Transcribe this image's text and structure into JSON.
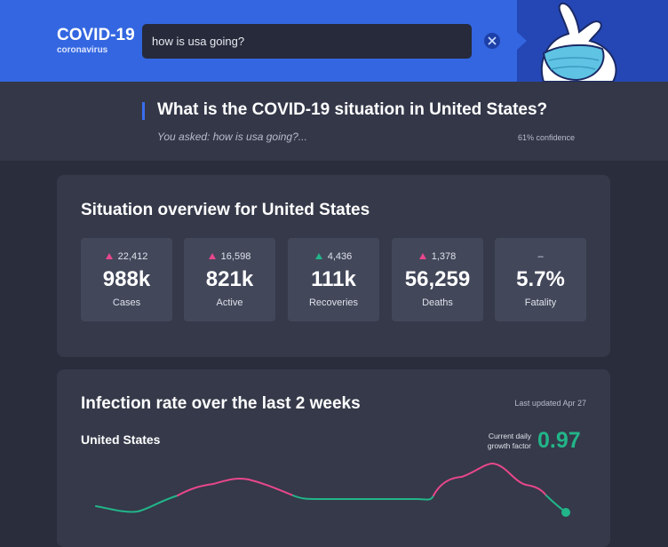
{
  "header": {
    "title": "COVID-19",
    "subtitle": "coronavirus",
    "search_query": "how is usa going?"
  },
  "question": {
    "title": "What is the COVID-19 situation in United States?",
    "asked": "You asked: how is usa going?...",
    "confidence": "61% confidence"
  },
  "overview": {
    "title": "Situation overview for United States",
    "stats": [
      {
        "change": "22,412",
        "value": "988k",
        "label": "Cases"
      },
      {
        "change": "16,598",
        "value": "821k",
        "label": "Active"
      },
      {
        "change": "4,436",
        "value": "111k",
        "label": "Recoveries"
      },
      {
        "change": "1,378",
        "value": "56,259",
        "label": "Deaths"
      },
      {
        "change": "–",
        "value": "5.7%",
        "label": "Fatality"
      }
    ]
  },
  "infection": {
    "title": "Infection rate over the last 2 weeks",
    "updated": "Last updated Apr 27",
    "region": "United States",
    "growth_label": [
      "Current daily",
      "growth factor"
    ],
    "growth_value": "0.97"
  }
}
